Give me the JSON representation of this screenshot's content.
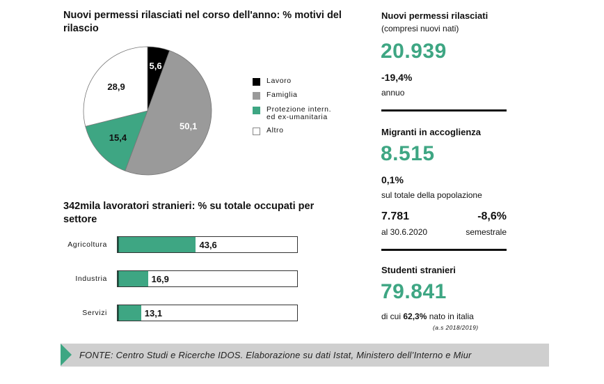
{
  "chart_data": [
    {
      "type": "pie",
      "title": "Nuovi permessi rilasciati nel corso dell'anno: % motivi del rilascio",
      "slices": [
        {
          "label": "Lavoro",
          "value": 5.6,
          "value_label": "5,6",
          "color": "#000000",
          "text_color": "#ffffff"
        },
        {
          "label": "Famiglia",
          "value": 50.1,
          "value_label": "50,1",
          "color": "#9a9a9a",
          "text_color": "#ffffff"
        },
        {
          "label": "Protezione intern. ed ex-umanitaria",
          "label_lines": [
            "Protezione intern.",
            "ed ex-umanitaria"
          ],
          "value": 15.4,
          "value_label": "15,4",
          "color": "#3ea683",
          "text_color": "#111111"
        },
        {
          "label": "Altro",
          "value": 28.9,
          "value_label": "28,9",
          "color": "#ffffff",
          "text_color": "#111111"
        }
      ],
      "legend_position": "right"
    },
    {
      "type": "bar",
      "orientation": "horizontal",
      "title": "342mila lavoratori stranieri: % su totale occupati per settore",
      "categories": [
        "Agricoltura",
        "Industria",
        "Servizi"
      ],
      "values": [
        43.6,
        16.9,
        13.1
      ],
      "value_labels": [
        "43,6",
        "16,9",
        "13,1"
      ],
      "xlim": [
        0,
        100
      ],
      "bar_color": "#3ea683"
    }
  ],
  "right_panel": {
    "permessi": {
      "title": "Nuovi permessi rilasciati",
      "subtitle": "(compresi nuovi nati)",
      "value": "20.939",
      "change": "-19,4%",
      "change_label": "annuo"
    },
    "accoglienza": {
      "title": "Migranti in accoglienza",
      "value": "8.515",
      "share": "0,1%",
      "share_label": "sul totale della popolazione",
      "value2": "7.781",
      "value2_label": "al 30.6.2020",
      "change2": "-8,6%",
      "change2_label": "semestrale"
    },
    "studenti": {
      "title": "Studenti stranieri",
      "value": "79.841",
      "note_prefix": "di cui",
      "note_value": "62,3%",
      "note_suffix": "nato in italia",
      "note_year": "(a.s 2018/2019)"
    }
  },
  "footer": {
    "text": "FONTE:  Centro Studi e Ricerche IDOS. Elaborazione su dati Istat, Ministero dell’Interno e Miur"
  },
  "colors": {
    "accent": "#3ea683",
    "footer_bg": "#cfcfcf"
  }
}
